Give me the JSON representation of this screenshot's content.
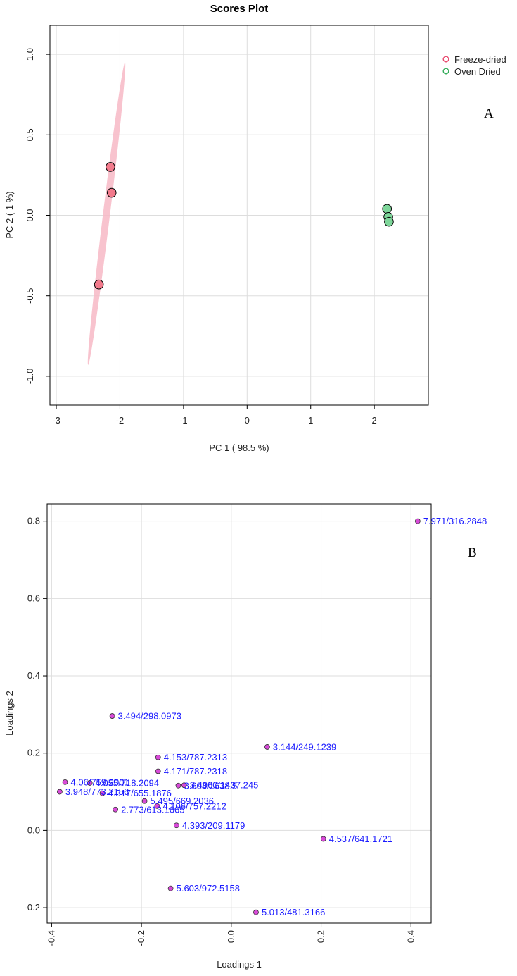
{
  "chart_data": [
    {
      "type": "scatter",
      "title": "Scores Plot",
      "panel_label": "A",
      "xlabel": "PC 1 ( 98.5 %)",
      "ylabel": "PC 2 ( 1 %)",
      "xlim": [
        -3.1,
        2.85
      ],
      "ylim": [
        -1.18,
        1.18
      ],
      "xticks": [
        -3,
        -2,
        -1,
        0,
        1,
        2
      ],
      "yticks": [
        -1.0,
        -0.5,
        0.0,
        0.5,
        1.0
      ],
      "xtick_labels": [
        "-3",
        "-2",
        "-1",
        "0",
        "1",
        "2"
      ],
      "ytick_labels": [
        "-1.0",
        "-0.5",
        "0.0",
        "0.5",
        "1.0"
      ],
      "grid": true,
      "legend_position": "right",
      "series": [
        {
          "name": "Freeze-dried",
          "color": "#e8446a",
          "fill": "#f27a8c",
          "ellipse_fill": "#f7b8c6",
          "x": [
            -2.15,
            -2.13,
            -2.33
          ],
          "y": [
            0.3,
            0.14,
            -0.43
          ],
          "ellipse": {
            "center": [
              -2.21,
              0.005
            ],
            "ends": [
              [
                -1.92,
                0.95
              ],
              [
                -2.5,
                -0.93
              ]
            ],
            "half_width": 0.055
          }
        },
        {
          "name": "Oven Dried",
          "color": "#2eaa55",
          "fill": "#7ed69a",
          "x": [
            2.2,
            2.22,
            2.23
          ],
          "y": [
            0.04,
            -0.01,
            -0.04
          ],
          "ellipse": null
        }
      ]
    },
    {
      "type": "scatter",
      "title": "",
      "panel_label": "B",
      "xlabel": "Loadings 1",
      "ylabel": "Loadings 2",
      "xlim": [
        -0.41,
        0.445
      ],
      "ylim": [
        -0.24,
        0.845
      ],
      "xticks": [
        -0.4,
        -0.2,
        0.0,
        0.2,
        0.4
      ],
      "yticks": [
        -0.2,
        0.0,
        0.2,
        0.4,
        0.6,
        0.8
      ],
      "xtick_labels": [
        "-0.4",
        "-0.2",
        "0.0",
        "0.2",
        "0.4"
      ],
      "ytick_labels": [
        "-0.2",
        "0.0",
        "0.2",
        "0.4",
        "0.6",
        "0.8"
      ],
      "grid": true,
      "point_color": "#d84ad8",
      "points": [
        {
          "x": 0.415,
          "y": 0.8,
          "label": "7.971/316.2848"
        },
        {
          "x": -0.265,
          "y": 0.296,
          "label": "3.494/298.0973"
        },
        {
          "x": 0.08,
          "y": 0.216,
          "label": "3.144/249.1239"
        },
        {
          "x": -0.163,
          "y": 0.189,
          "label": "4.153/787.2313"
        },
        {
          "x": -0.163,
          "y": 0.153,
          "label": "4.171/787.2318"
        },
        {
          "x": -0.37,
          "y": 0.125,
          "label": "4.06/759.2001"
        },
        {
          "x": -0.315,
          "y": 0.123,
          "label": "4.055/718.2094"
        },
        {
          "x": -0.118,
          "y": 0.116,
          "label": "3.603/1638.5"
        },
        {
          "x": -0.105,
          "y": 0.117,
          "label": "3.4960/1437.245"
        },
        {
          "x": -0.382,
          "y": 0.1,
          "label": "3.948/773.2156"
        },
        {
          "x": -0.287,
          "y": 0.096,
          "label": "4.317/655.1876"
        },
        {
          "x": -0.193,
          "y": 0.076,
          "label": "5.495/669.2036"
        },
        {
          "x": -0.165,
          "y": 0.063,
          "label": "4.106/757.2212"
        },
        {
          "x": -0.258,
          "y": 0.054,
          "label": "2.773/613.1665"
        },
        {
          "x": -0.122,
          "y": 0.013,
          "label": "4.393/209.1179"
        },
        {
          "x": 0.205,
          "y": -0.022,
          "label": "4.537/641.1721"
        },
        {
          "x": -0.135,
          "y": -0.15,
          "label": "5.603/972.5158"
        },
        {
          "x": 0.055,
          "y": -0.212,
          "label": "5.013/481.3166"
        }
      ]
    }
  ]
}
